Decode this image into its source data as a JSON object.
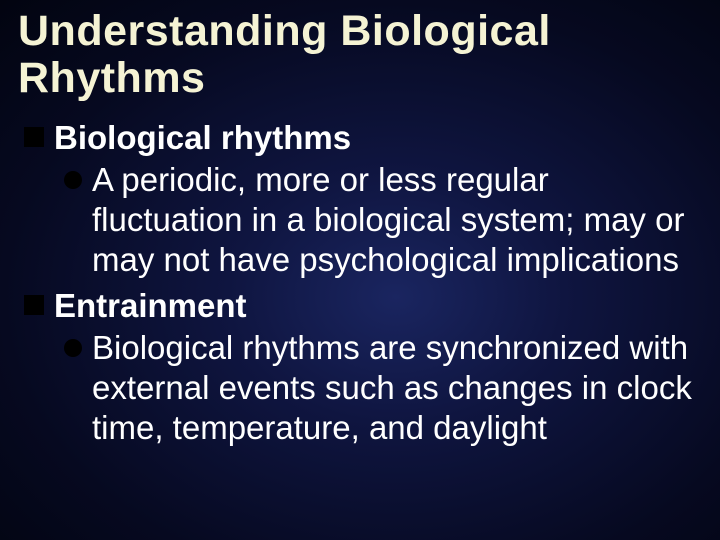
{
  "slide": {
    "title": "Understanding Biological Rhythms",
    "items": [
      {
        "label": "Biological rhythms",
        "sub": "A periodic, more or less regular fluctuation in a biological system; may or may not have psychological implications"
      },
      {
        "label": "Entrainment",
        "sub": "Biological rhythms are synchronized with external events such as changes in clock time, temperature, and daylight"
      }
    ],
    "colors": {
      "title_color": "#f5f3d4",
      "text_color": "#ffffff",
      "bullet_color": "#000000",
      "bg_center": "#1a2560",
      "bg_outer": "#020410"
    },
    "fonts": {
      "title_size_pt": 32,
      "body_size_pt": 25,
      "family": "Arial"
    }
  }
}
